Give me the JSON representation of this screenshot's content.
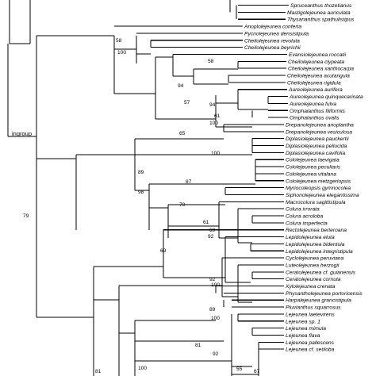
{
  "clade_label": "ingroup",
  "taxa": [
    "Spruceanthus thozetianus",
    "Mastigolejeunea auriculata",
    "Thysananthus spathulistipus",
    "Anoplolejeunea conferta",
    "Pycnolejeunea densistipula",
    "Cheilolejeunea revoluta",
    "Cheilolejeunea beyrichii",
    "Evansiolejeunea roccatii",
    "Cheilolejeunea clypeata",
    "Cheilolejeunea xanthocarpa",
    "Cheilolejeunea acutangula",
    "Cheilolejeunea rigidula",
    "Aureolejeunea aurifera",
    "Aureolejeunea quinquecarinata",
    "Aureolejeunea fulva",
    "Omphalanthus filiformis",
    "Omphalanthus ovalis",
    "Drepanolejeunea anoplantha",
    "Drepanolejeunea vesiculosa",
    "Diplasiolejeunea pauckertii",
    "Diplasiolejeunea pellucida",
    "Diplasiolejeunea cavifolia",
    "Cololejeunea laevigata",
    "Cololejeunea peculiaris",
    "Cololejeunea vitalana",
    "Cololejeunea metzgeriopsis",
    "Myriocoleopsis gymnocolea",
    "Siphonolejeunea elegantissima",
    "Macrocolura sagittistipula",
    "Colura irrorata",
    "Colura acroloba",
    "Colura imperfecta",
    "Rectolejeunea berteroana",
    "Lepidolejeunea eluta",
    "Lepidolejeunea bidentula",
    "Lepidolejeunea integristipula",
    "Cyclolejeunea peruviana",
    "Luteolejeunea herzogii",
    "Ceratolejeunea cf. guianensis",
    "Ceratolejeunea cornuta",
    "Xylolejeunea crenata",
    "Physantholejeunea portoricensis",
    "Harpalejeunea grancistipula",
    "Pluvianthus squarrosus",
    "Lejeunea laetevirens",
    "Lejeunea sp. 1",
    "Lejeunea mimula",
    "Lejeunea flava",
    "Lejeunea pallescens",
    "Lejeunea cf. setiloba"
  ],
  "support_values": [
    "58",
    "100",
    "58",
    "94",
    "57",
    "94",
    "61",
    "100",
    "65",
    "100",
    "89",
    "87",
    "98",
    "79",
    "61",
    "69",
    "92",
    "79",
    "69",
    "92",
    "100",
    "89",
    "100",
    "81",
    "92",
    "55",
    "67",
    "100",
    "81"
  ]
}
